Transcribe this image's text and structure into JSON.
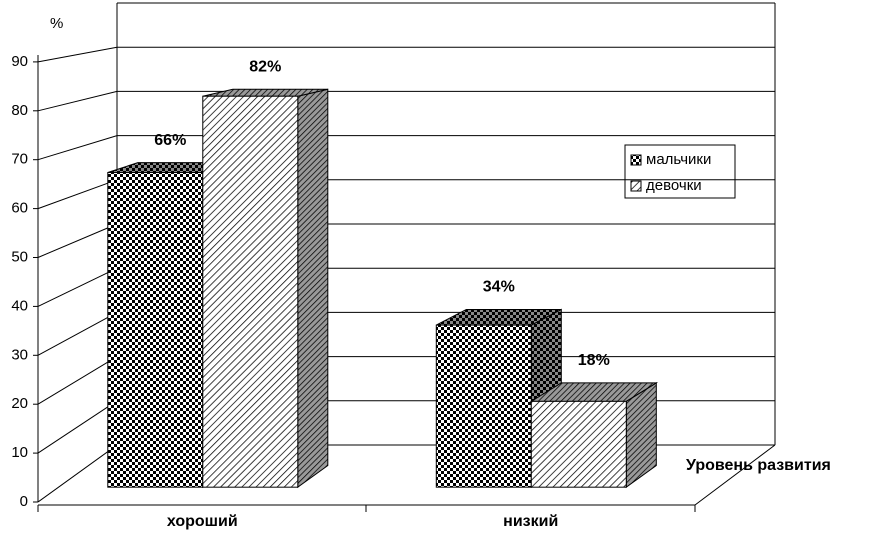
{
  "chart_data": {
    "type": "bar3d",
    "y_label": "%",
    "x_label": "Уровень развития",
    "categories": [
      "хороший",
      "низкий"
    ],
    "series": [
      {
        "name": "мальчики",
        "pattern": "checker",
        "values": [
          66,
          34
        ],
        "value_labels": [
          "66%",
          "34%"
        ]
      },
      {
        "name": "девочки",
        "pattern": "hatch",
        "values": [
          82,
          18
        ],
        "value_labels": [
          "82%",
          "18%"
        ]
      }
    ],
    "ylim": [
      0,
      100
    ],
    "yticks": [
      0,
      10,
      20,
      30,
      40,
      50,
      60,
      70,
      80,
      90
    ],
    "grid": true
  }
}
